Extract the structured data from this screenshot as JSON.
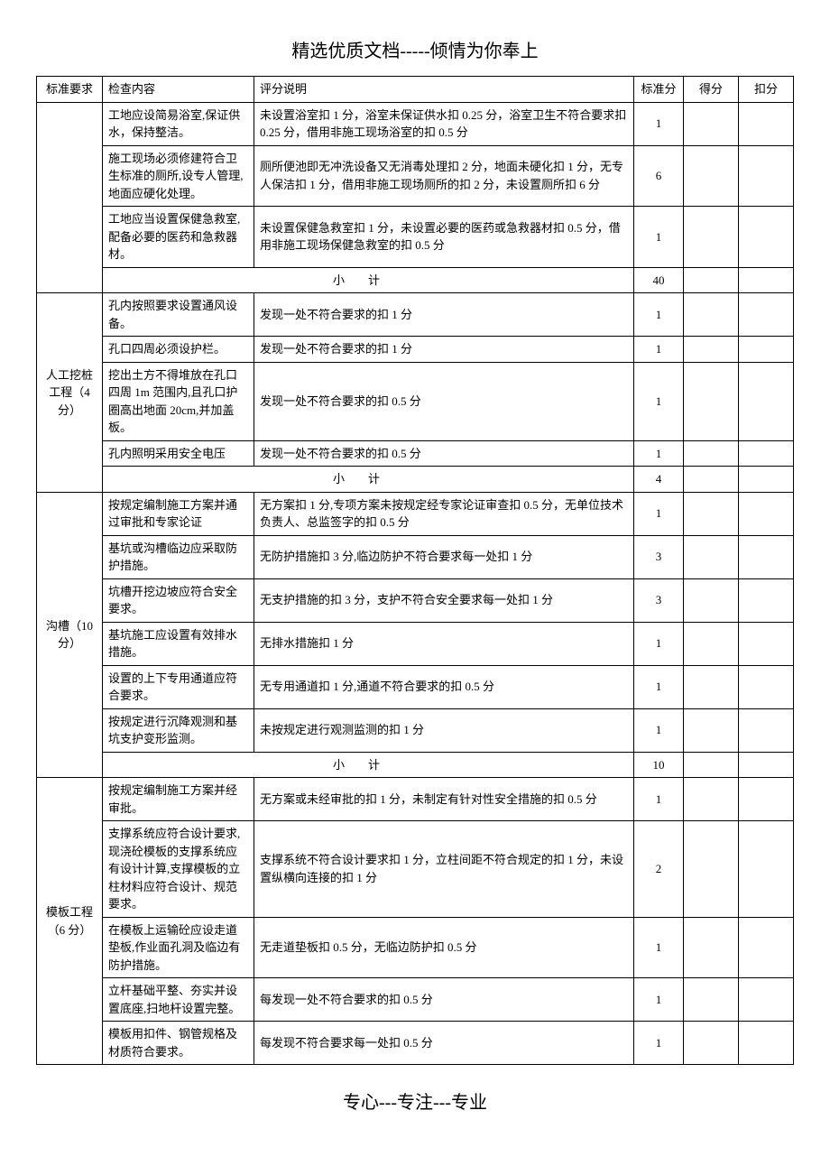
{
  "title": "精选优质文档-----倾情为你奉上",
  "footer": "专心---专注---专业",
  "headers": {
    "req": "标准要求",
    "check": "检查内容",
    "desc": "评分说明",
    "std": "标准分",
    "score": "得分",
    "deduct": "扣分"
  },
  "subtotal_label": "小计",
  "sections": [
    {
      "req": "",
      "rows": [
        {
          "check": "工地应设简易浴室,保证供水，保持整洁。",
          "desc": "未设置浴室扣 1 分，浴室未保证供水扣 0.25 分，浴室卫生不符合要求扣 0.25 分，借用非施工现场浴室的扣 0.5 分",
          "std": "1"
        },
        {
          "check": "施工现场必须修建符合卫生标准的厕所,设专人管理,地面应硬化处理。",
          "desc": "厕所便池即无冲洗设备又无消毒处理扣 2 分，地面未硬化扣 1 分，无专人保洁扣 1 分，借用非施工现场厕所的扣 2 分，未设置厕所扣 6 分",
          "std": "6"
        },
        {
          "check": "工地应当设置保健急救室,配备必要的医药和急救器材。",
          "desc": "未设置保健急救室扣 1 分，未设置必要的医药或急救器材扣 0.5 分，借用非施工现场保健急救室的扣 0.5 分",
          "std": "1"
        }
      ],
      "subtotal": "40"
    },
    {
      "req": "人工挖桩工程（4 分）",
      "rows": [
        {
          "check": "孔内按照要求设置通风设备。",
          "desc": "发现一处不符合要求的扣 1 分",
          "std": "1"
        },
        {
          "check": "孔口四周必须设护栏。",
          "desc": "发现一处不符合要求的扣 1 分",
          "std": "1"
        },
        {
          "check": "挖出土方不得堆放在孔口四周 1m 范围内,且孔口护圈高出地面 20cm,并加盖板。",
          "desc": "发现一处不符合要求的扣 0.5 分",
          "std": "1"
        },
        {
          "check": "孔内照明采用安全电压",
          "desc": "发现一处不符合要求的扣 0.5 分",
          "std": "1"
        }
      ],
      "subtotal": "4"
    },
    {
      "req": "沟槽（10 分）",
      "rows": [
        {
          "check": "按规定编制施工方案并通过审批和专家论证",
          "desc": "无方案扣 1 分,专项方案未按规定经专家论证审查扣 0.5 分，无单位技术负责人、总监签字的扣 0.5 分",
          "std": "1"
        },
        {
          "check": "基坑或沟槽临边应采取防护措施。",
          "desc": "无防护措施扣 3 分,临边防护不符合要求每一处扣 1 分",
          "std": "3"
        },
        {
          "check": "坑槽开挖边坡应符合安全要求。",
          "desc": "无支护措施的扣 3 分，支护不符合安全要求每一处扣 1 分",
          "std": "3"
        },
        {
          "check": "基坑施工应设置有效排水措施。",
          "desc": "无排水措施扣 1 分",
          "std": "1"
        },
        {
          "check": "设置的上下专用通道应符合要求。",
          "desc": "无专用通道扣 1 分,通道不符合要求的扣 0.5 分",
          "std": "1"
        },
        {
          "check": "按规定进行沉降观测和基坑支护变形监测。",
          "desc": "未按规定进行观测监测的扣 1 分",
          "std": "1"
        }
      ],
      "subtotal": "10"
    },
    {
      "req": "模板工程（6 分）",
      "rows": [
        {
          "check": "按规定编制施工方案并经审批。",
          "desc": "无方案或未经审批的扣 1 分，未制定有针对性安全措施的扣 0.5 分",
          "std": "1"
        },
        {
          "check": "支撑系统应符合设计要求,现浇砼模板的支撑系统应有设计计算,支撑模板的立柱材料应符合设计、规范要求。",
          "desc": "支撑系统不符合设计要求扣 1 分，立柱间距不符合规定的扣 1 分，未设置纵横向连接的扣 1 分",
          "std": "2"
        },
        {
          "check": "在模板上运输砼应设走道垫板,作业面孔洞及临边有防护措施。",
          "desc": "无走道垫板扣 0.5 分，无临边防护扣 0.5 分",
          "std": "1"
        },
        {
          "check": "立杆基础平整、夯实并设置底座,扫地杆设置完整。",
          "desc": "每发现一处不符合要求的扣 0.5 分",
          "std": "1"
        },
        {
          "check": "模板用扣件、钢管规格及材质符合要求。",
          "desc": "每发现不符合要求每一处扣 0.5 分",
          "std": "1"
        }
      ],
      "subtotal": null
    }
  ]
}
